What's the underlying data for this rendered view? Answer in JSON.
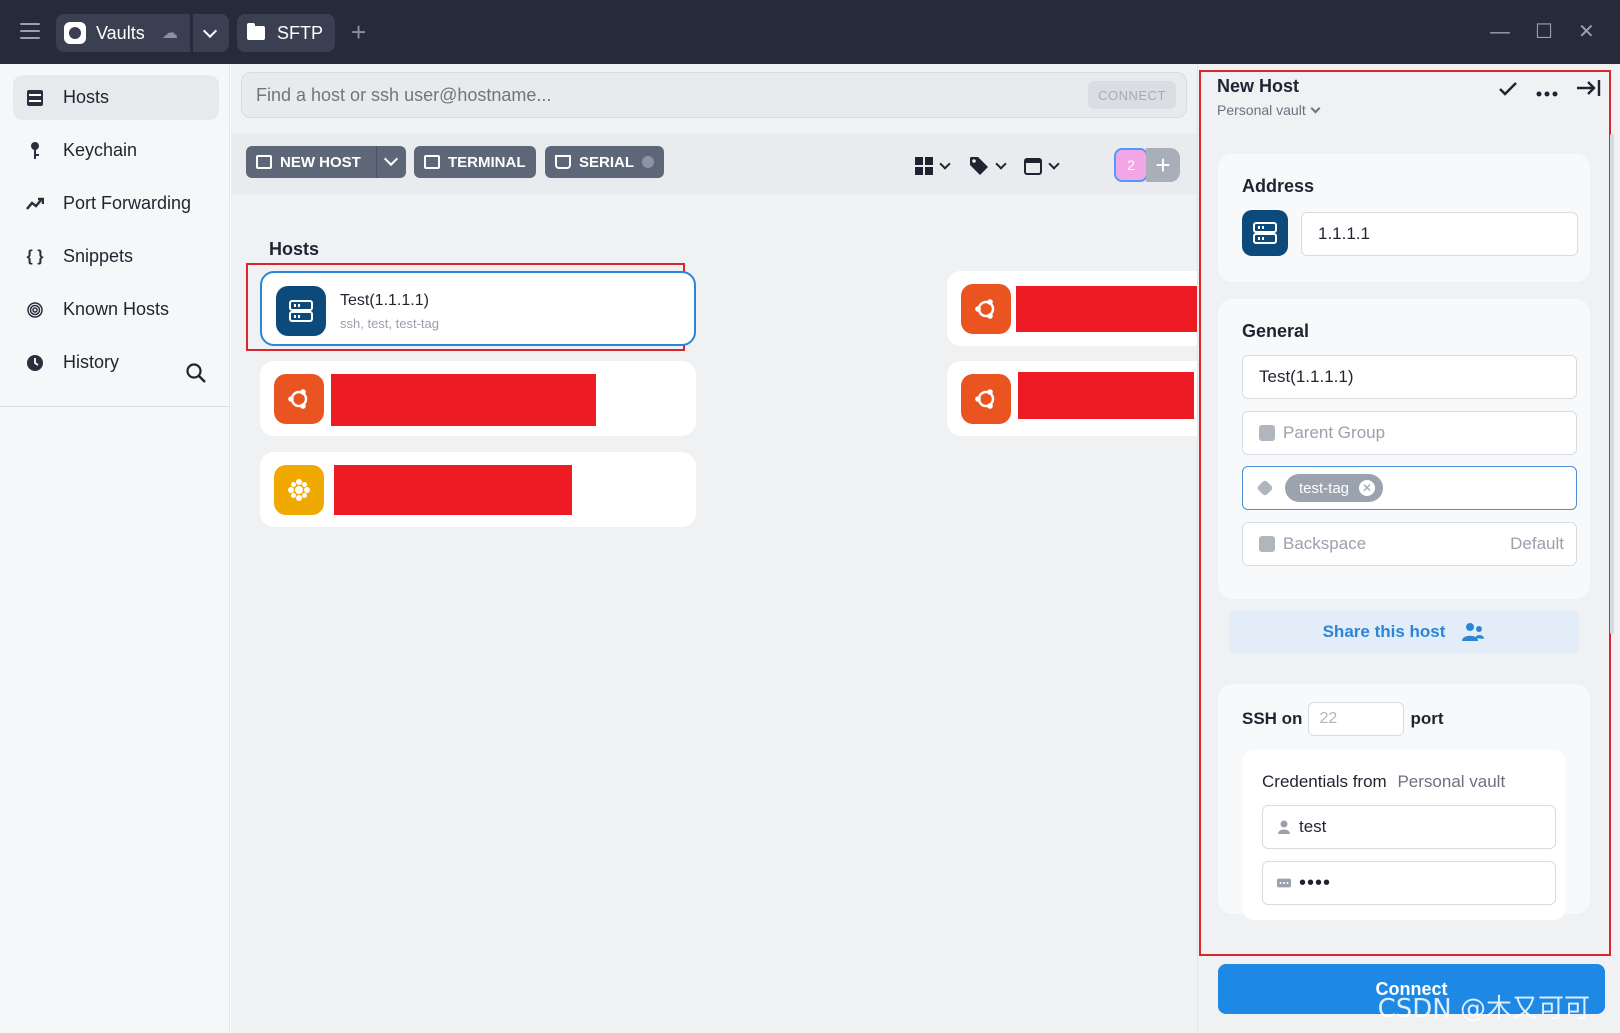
{
  "titlebar": {
    "vaults_label": "Vaults",
    "sftp_label": "SFTP",
    "add_tab": "+",
    "minimize": "—",
    "maximize": "☐",
    "close": "✕"
  },
  "sidebar": {
    "items": [
      {
        "label": "Hosts",
        "icon": "hosts-icon",
        "active": true
      },
      {
        "label": "Keychain",
        "icon": "key-icon"
      },
      {
        "label": "Port Forwarding",
        "icon": "port-forwarding-icon"
      },
      {
        "label": "Snippets",
        "icon": "braces-icon"
      },
      {
        "label": "Known Hosts",
        "icon": "fingerprint-icon"
      },
      {
        "label": "History",
        "icon": "clock-icon"
      }
    ]
  },
  "search": {
    "placeholder": "Find a host or ssh user@hostname...",
    "connect_label": "CONNECT"
  },
  "toolbar": {
    "new_host_label": "NEW HOST",
    "terminal_label": "TERMINAL",
    "serial_label": "SERIAL",
    "user_count": "2"
  },
  "hosts": {
    "section_title": "Hosts",
    "cards": [
      {
        "name": "Test(1.1.1.1)",
        "sub": "ssh, test, test-tag",
        "os": "server",
        "color": "#0d4a7c"
      },
      {
        "name": "",
        "sub": "",
        "os": "ubuntu",
        "color": "#e95420"
      },
      {
        "name": "",
        "sub": "",
        "os": "ubuntu",
        "color": "#e95420"
      },
      {
        "name": "",
        "sub": "",
        "os": "ubuntu",
        "color": "#e95420"
      },
      {
        "name": "",
        "sub": "",
        "os": "other",
        "color": "#f0a900"
      }
    ]
  },
  "panel": {
    "title": "New Host",
    "vault": "Personal vault",
    "address_title": "Address",
    "address_value": "1.1.1.1",
    "general_title": "General",
    "label_value": "Test(1.1.1.1)",
    "parent_group_placeholder": "Parent Group",
    "tag": "test-tag",
    "backspace_label": "Backspace",
    "backspace_value": "Default",
    "share_label": "Share this host",
    "ssh_on": "SSH on",
    "port_placeholder": "22",
    "port_label": "port",
    "credentials_from": "Credentials from",
    "credentials_vault": "Personal vault",
    "username": "test",
    "password": "••••",
    "connect_label": "Connect"
  },
  "watermark": "CSDN @木又可可",
  "colors": {
    "accent": "#1e88e5",
    "titlebar": "#262b3b",
    "highlight_box": "#d9262c"
  }
}
